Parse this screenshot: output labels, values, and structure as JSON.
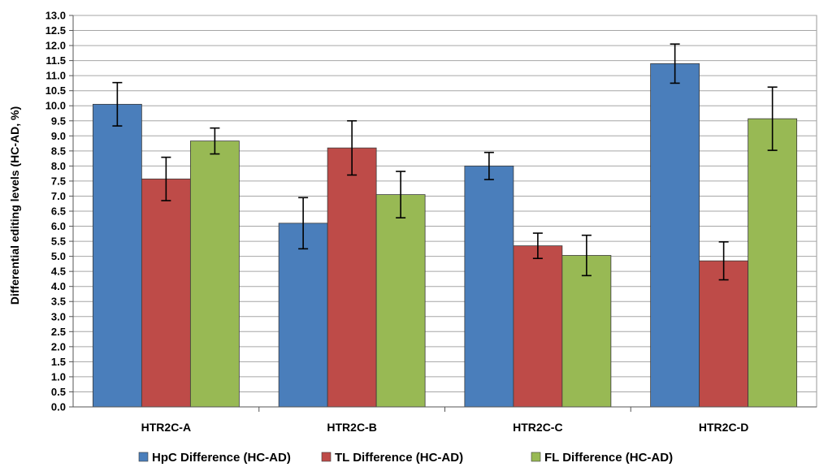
{
  "chart_data": {
    "type": "bar",
    "ylabel": "Differential editing levels (HC-AD, %)",
    "xlabel": "",
    "ylim": [
      0,
      13
    ],
    "ytick_step": 0.5,
    "categories": [
      "HTR2C-A",
      "HTR2C-B",
      "HTR2C-C",
      "HTR2C-D"
    ],
    "series": [
      {
        "name": "HpC Difference (HC-AD)",
        "color": "#4a7ebb",
        "values": [
          10.05,
          6.1,
          8.0,
          11.4
        ],
        "errors": [
          0.72,
          0.85,
          0.45,
          0.65
        ]
      },
      {
        "name": "TL Difference (HC-AD)",
        "color": "#be4b48",
        "values": [
          7.57,
          8.6,
          5.35,
          4.85
        ],
        "errors": [
          0.72,
          0.9,
          0.42,
          0.63
        ]
      },
      {
        "name": "FL Difference  (HC-AD)",
        "color": "#98b954",
        "values": [
          8.83,
          7.05,
          5.03,
          9.57
        ],
        "errors": [
          0.43,
          0.77,
          0.67,
          1.05
        ]
      }
    ],
    "grid": true,
    "legend": "bottom"
  }
}
